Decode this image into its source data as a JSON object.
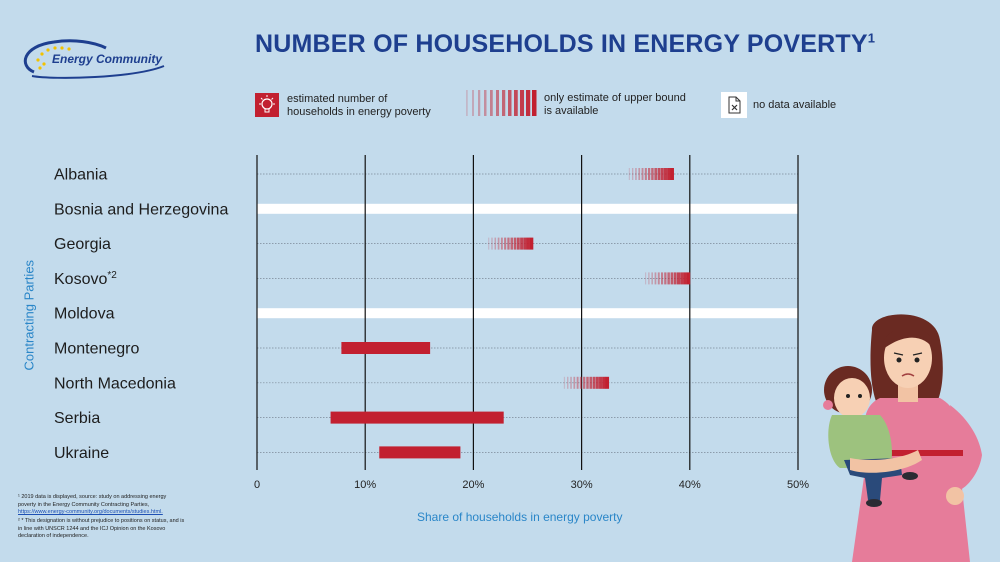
{
  "header": {
    "title": "NUMBER OF HOUSEHOLDS IN ENERGY POVERTY",
    "title_sup": "1",
    "logo_text": "Energy Community"
  },
  "legend": [
    {
      "key": "estimate",
      "line1": "estimated number of",
      "line2": "households in energy poverty",
      "icon": "lightbulb-icon"
    },
    {
      "key": "upper_bound",
      "line1": "only estimate of upper bound",
      "line2": "is available",
      "icon": "gradient-bar-icon"
    },
    {
      "key": "no_data",
      "line1": "no data available",
      "line2": "",
      "icon": "no-data-file-icon"
    }
  ],
  "colors": {
    "background": "#c3dbec",
    "estimate_bar": "#c22030",
    "title": "#1e3f8f",
    "axis_label": "#2a86c8"
  },
  "chart_data": {
    "type": "bar",
    "orientation": "horizontal",
    "ylabel": "Contracting Parties",
    "xlabel": "Share of households in energy poverty",
    "xlim": [
      0,
      50
    ],
    "x_ticks": [
      "0",
      "10%",
      "20%",
      "30%",
      "40%",
      "50%"
    ],
    "grid": true,
    "categories": [
      {
        "name": "Albania",
        "type": "upper_bound",
        "value": 38.5
      },
      {
        "name": "Bosnia and Herzegovina",
        "type": "no_data"
      },
      {
        "name": "Georgia",
        "type": "upper_bound",
        "value": 25.5
      },
      {
        "name": "Kosovo",
        "sup": "*2",
        "type": "upper_bound",
        "value": 40
      },
      {
        "name": "Moldova",
        "type": "no_data"
      },
      {
        "name": "Montenegro",
        "type": "range",
        "low": 7.8,
        "high": 16
      },
      {
        "name": "North Macedonia",
        "type": "upper_bound",
        "value": 32.5
      },
      {
        "name": "Serbia",
        "type": "range",
        "low": 6.8,
        "high": 22.8
      },
      {
        "name": "Ukraine",
        "type": "range",
        "low": 11.3,
        "high": 18.8
      }
    ]
  },
  "footnotes": {
    "fn1_line1": "¹ 2019 data is displayed, source: study on addressing energy",
    "fn1_line2": "poverty in the Energy Community Contracting Parties,",
    "fn1_link": "https://www.energy-community.org/documents/studies.html.",
    "fn2_line1": "² * This designation is without prejudice to positions on status, and is",
    "fn2_line2": "in line with UNSCR 1244 and the ICJ Opinion on the Kosovo",
    "fn2_line3": "declaration of independence."
  }
}
